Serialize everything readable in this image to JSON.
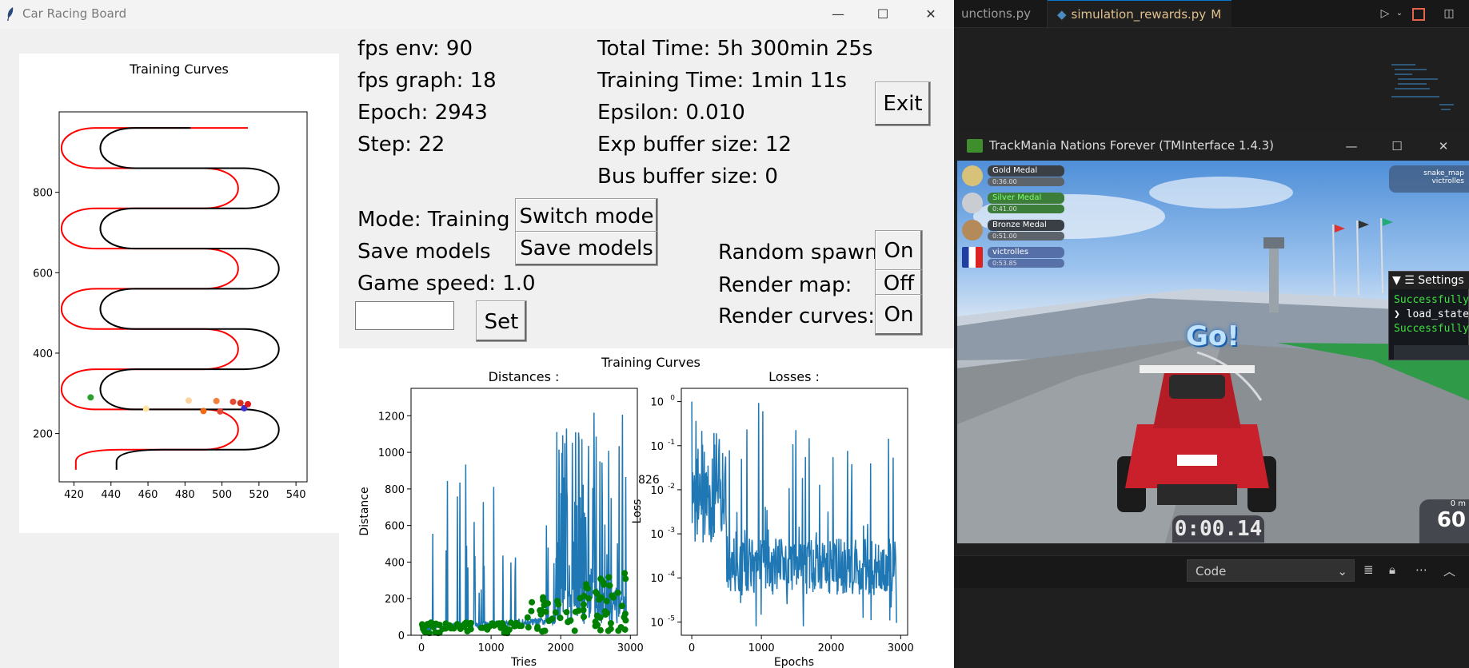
{
  "vscode": {
    "tabs": [
      {
        "label": "unctions.py"
      },
      {
        "label": "simulation_rewards.py",
        "badge": "M"
      }
    ],
    "panel": {
      "dropdown_value": "Code"
    }
  },
  "crb_window": {
    "title": "Car Racing Board",
    "stats": {
      "fps_env": "fps env: 90",
      "fps_graph": "fps graph: 18",
      "epoch": "Epoch: 2943",
      "step": "Step: 22",
      "total_time": "Total Time: 5h 300min 25s",
      "training_time": "Training Time: 1min 11s",
      "epsilon": "Epsilon: 0.010",
      "exp_buffer": "Exp buffer size: 12",
      "bus_buffer": "Bus buffer size: 0"
    },
    "controls": {
      "exit": "Exit",
      "mode_label": "Mode: Training",
      "switch_mode": "Switch mode",
      "save_label": "Save models",
      "save_button": "Save models",
      "game_speed_label": "Game speed: 1.0",
      "game_speed_input": "",
      "set_button": "Set",
      "random_spawn_label": "Random spawn:",
      "random_spawn_value": "On",
      "render_map_label": "Render map:",
      "render_map_value": "Off",
      "render_curves_label": "Render curves:",
      "render_curves_value": "On"
    }
  },
  "chart_data": [
    {
      "type": "line",
      "title": "Training Curves",
      "xlabel": "",
      "ylabel": "",
      "xlim": [
        412,
        546
      ],
      "ylim": [
        80,
        1000
      ],
      "xticks": [
        "420",
        "440",
        "460",
        "480",
        "500",
        "520",
        "540"
      ],
      "yticks": [
        "200",
        "400",
        "600",
        "800"
      ],
      "series": [
        {
          "name": "track-left-border",
          "color": "#ff0000"
        },
        {
          "name": "track-right-border",
          "color": "#000000"
        }
      ],
      "points": [
        {
          "x": 429,
          "y": 290,
          "color": "#2ca02c"
        },
        {
          "x": 459,
          "y": 262,
          "color": "#ffe5a0"
        },
        {
          "x": 482,
          "y": 282,
          "color": "#fdd49e"
        },
        {
          "x": 490,
          "y": 256,
          "color": "#f16913"
        },
        {
          "x": 497,
          "y": 281,
          "color": "#f0803c"
        },
        {
          "x": 499,
          "y": 255,
          "color": "#e34a33"
        },
        {
          "x": 506,
          "y": 279,
          "color": "#e34a33"
        },
        {
          "x": 510,
          "y": 276,
          "color": "#d7301f"
        },
        {
          "x": 512,
          "y": 263,
          "color": "#3b2fd0"
        },
        {
          "x": 514,
          "y": 273,
          "color": "#e31a1c"
        }
      ]
    },
    {
      "type": "line",
      "suptitle": "Training Curves",
      "title": "Distances :",
      "xlabel": "Tries",
      "ylabel": "Distance",
      "xlim": [
        -150,
        3100
      ],
      "ylim": [
        0,
        1350
      ],
      "xticks": [
        "0",
        "1000",
        "2000",
        "3000"
      ],
      "yticks": [
        "0",
        "200",
        "400",
        "600",
        "800",
        "1000",
        "1200"
      ],
      "annotation": "826",
      "series": [
        {
          "name": "distance",
          "color": "#1f77b4"
        },
        {
          "name": "eval-distance",
          "color": "#008000",
          "marker": "o"
        }
      ]
    },
    {
      "type": "line",
      "title": "Losses :",
      "xlabel": "Epochs",
      "ylabel": "Loss",
      "yscale": "log",
      "xlim": [
        -150,
        3100
      ],
      "ylim": [
        5e-06,
        2
      ],
      "xticks": [
        "0",
        "1000",
        "2000",
        "3000"
      ],
      "yticks": [
        "10^0",
        "10^-1",
        "10^-2",
        "10^-3",
        "10^-4",
        "10^-5"
      ],
      "series": [
        {
          "name": "loss",
          "color": "#1f77b4"
        }
      ]
    }
  ],
  "tm_window": {
    "title": "TrackMania Nations Forever (TMInterface 1.4.3)",
    "medals": [
      {
        "name": "Gold Medal",
        "time": "0:36.00"
      },
      {
        "name": "Silver Medal",
        "time": "0:41.00"
      },
      {
        "name": "Bronze Medal",
        "time": "0:51.00"
      },
      {
        "name": "victrolles",
        "time": "0:53.85"
      }
    ],
    "map_info": {
      "map": "snake_map",
      "author": "victrolles"
    },
    "go_text": "Go!",
    "timer": "0:00.14",
    "speed_unit": "0 m",
    "speed_value": "60",
    "settings": {
      "title": "Settings",
      "lines": [
        "Successfully",
        "load_state",
        "Successfully"
      ]
    }
  }
}
